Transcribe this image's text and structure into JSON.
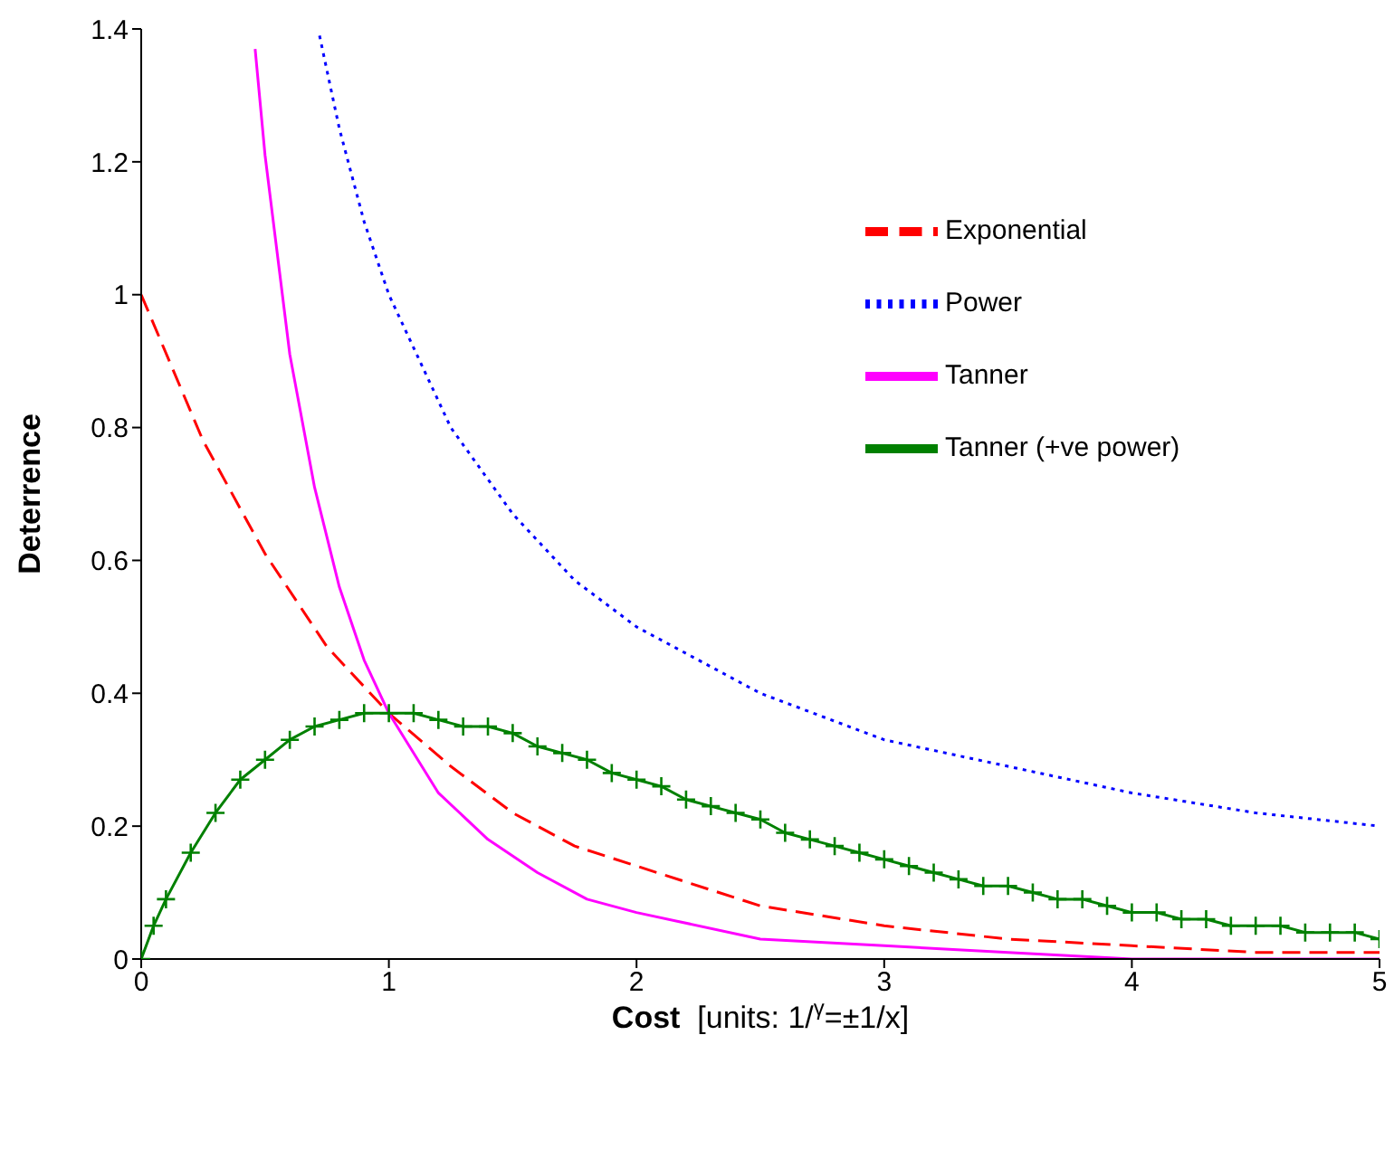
{
  "chart_data": {
    "type": "line",
    "xlabel": "Cost  [units: 1/$^{γ}$=±1/x]",
    "ylabel": "Deterrence",
    "xlim": [
      0,
      5
    ],
    "xticks": [
      0,
      1,
      2,
      3,
      4,
      5
    ],
    "ylim": [
      0,
      1.4
    ],
    "yticks": [
      0,
      0.2,
      0.4,
      0.6,
      0.8,
      1,
      1.2,
      1.4
    ],
    "grid": false,
    "legend": "top right",
    "series": [
      {
        "name": "Exponential",
        "color": "#ff0000",
        "line_style": "dashed",
        "marker": "none",
        "x": [
          0,
          0.25,
          0.5,
          0.75,
          1,
          1.25,
          1.5,
          1.75,
          2,
          2.5,
          3,
          3.5,
          4,
          4.5,
          5
        ],
        "values": [
          1,
          0.78,
          0.61,
          0.47,
          0.37,
          0.29,
          0.22,
          0.17,
          0.14,
          0.08,
          0.05,
          0.03,
          0.02,
          0.01,
          0.01
        ]
      },
      {
        "name": "Power",
        "color": "#0000ff",
        "line_style": "dotted",
        "marker": "none",
        "x": [
          0.72,
          0.8,
          0.9,
          1,
          1.25,
          1.5,
          1.75,
          2,
          2.5,
          3,
          3.5,
          4,
          4.5,
          5
        ],
        "values": [
          1.39,
          1.25,
          1.11,
          1,
          0.8,
          0.67,
          0.57,
          0.5,
          0.4,
          0.33,
          0.29,
          0.25,
          0.22,
          0.2
        ]
      },
      {
        "name": "Tanner",
        "color": "#ff00ff",
        "line_style": "solid",
        "marker": "none",
        "x": [
          0.46,
          0.5,
          0.6,
          0.7,
          0.8,
          0.9,
          1,
          1.2,
          1.4,
          1.6,
          1.8,
          2,
          2.5,
          3,
          3.5,
          4,
          4.5,
          5
        ],
        "values": [
          1.37,
          1.21,
          0.91,
          0.71,
          0.56,
          0.45,
          0.37,
          0.25,
          0.18,
          0.13,
          0.09,
          0.07,
          0.03,
          0.02,
          0.01,
          0,
          0,
          0
        ]
      },
      {
        "name": "Tanner (+ve power)",
        "color": "#008000",
        "line_style": "solid",
        "marker": "cross",
        "x": [
          0,
          0.05,
          0.1,
          0.2,
          0.3,
          0.4,
          0.5,
          0.6,
          0.7,
          0.8,
          0.9,
          1,
          1.1,
          1.2,
          1.3,
          1.4,
          1.5,
          1.6,
          1.7,
          1.8,
          1.9,
          2,
          2.1,
          2.2,
          2.3,
          2.4,
          2.5,
          2.6,
          2.7,
          2.8,
          2.9,
          3,
          3.1,
          3.2,
          3.3,
          3.4,
          3.5,
          3.6,
          3.7,
          3.8,
          3.9,
          4,
          4.1,
          4.2,
          4.3,
          4.4,
          4.5,
          4.6,
          4.7,
          4.8,
          4.9,
          5
        ],
        "values": [
          0,
          0.05,
          0.09,
          0.16,
          0.22,
          0.27,
          0.3,
          0.33,
          0.35,
          0.36,
          0.37,
          0.37,
          0.37,
          0.36,
          0.35,
          0.35,
          0.34,
          0.32,
          0.31,
          0.3,
          0.28,
          0.27,
          0.26,
          0.24,
          0.23,
          0.22,
          0.21,
          0.19,
          0.18,
          0.17,
          0.16,
          0.15,
          0.14,
          0.13,
          0.12,
          0.11,
          0.11,
          0.1,
          0.09,
          0.09,
          0.08,
          0.07,
          0.07,
          0.06,
          0.06,
          0.05,
          0.05,
          0.05,
          0.04,
          0.04,
          0.04,
          0.03
        ]
      }
    ]
  }
}
